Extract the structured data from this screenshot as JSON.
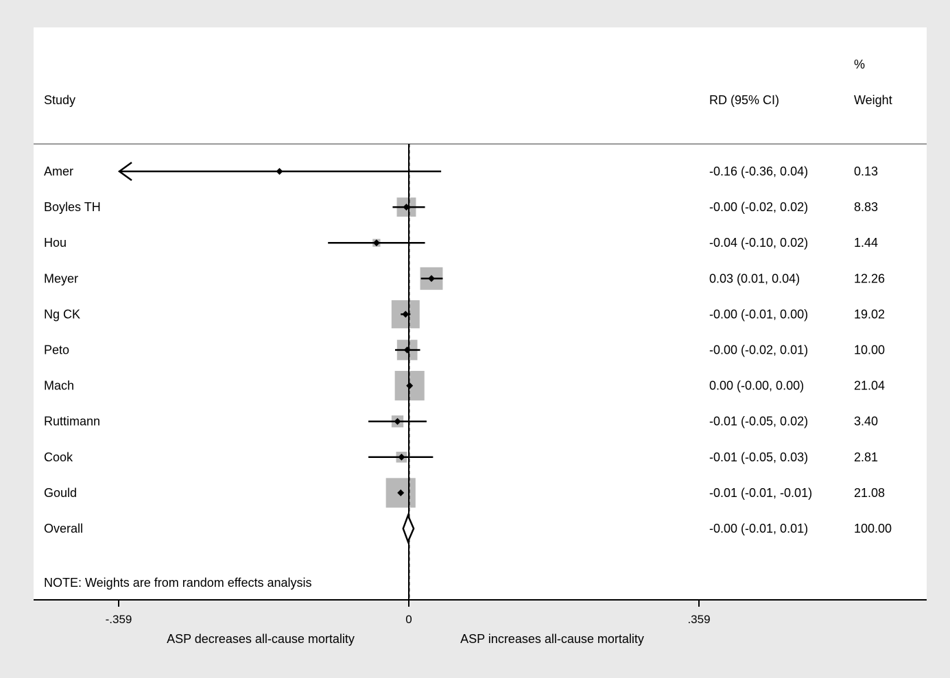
{
  "chart_data": {
    "type": "forest",
    "headers": {
      "study": "Study",
      "effect": "RD (95% CI)",
      "weight_top": "%",
      "weight": "Weight"
    },
    "rows": [
      {
        "study": "Amer",
        "rd": -0.16,
        "lo": -0.36,
        "hi": 0.04,
        "ci_text": "-0.16 (-0.36, 0.04)",
        "weight": 0.13,
        "weight_text": "0.13",
        "lo_arrow": true
      },
      {
        "study": "Boyles TH",
        "rd": -0.003,
        "lo": -0.02,
        "hi": 0.02,
        "ci_text": "-0.00 (-0.02, 0.02)",
        "weight": 8.83,
        "weight_text": "8.83"
      },
      {
        "study": "Hou",
        "rd": -0.04,
        "lo": -0.1,
        "hi": 0.02,
        "ci_text": "-0.04 (-0.10, 0.02)",
        "weight": 1.44,
        "weight_text": "1.44"
      },
      {
        "study": "Meyer",
        "rd": 0.028,
        "lo": 0.015,
        "hi": 0.042,
        "ci_text": "0.03 (0.01, 0.04)",
        "weight": 12.26,
        "weight_text": "12.26"
      },
      {
        "study": "Ng CK",
        "rd": -0.004,
        "lo": -0.01,
        "hi": 0.002,
        "ci_text": "-0.00 (-0.01, 0.00)",
        "weight": 19.02,
        "weight_text": "19.02"
      },
      {
        "study": "Peto",
        "rd": -0.002,
        "lo": -0.017,
        "hi": 0.014,
        "ci_text": "-0.00 (-0.02, 0.01)",
        "weight": 10.0,
        "weight_text": "10.00"
      },
      {
        "study": "Mach",
        "rd": 0.001,
        "lo": -0.001,
        "hi": 0.002,
        "ci_text": "0.00 (-0.00, 0.00)",
        "weight": 21.04,
        "weight_text": "21.04"
      },
      {
        "study": "Ruttimann",
        "rd": -0.014,
        "lo": -0.05,
        "hi": 0.022,
        "ci_text": "-0.01 (-0.05, 0.02)",
        "weight": 3.4,
        "weight_text": "3.40"
      },
      {
        "study": "Cook",
        "rd": -0.009,
        "lo": -0.05,
        "hi": 0.03,
        "ci_text": "-0.01 (-0.05, 0.03)",
        "weight": 2.81,
        "weight_text": "2.81"
      },
      {
        "study": "Gould",
        "rd": -0.01,
        "lo": -0.012,
        "hi": -0.008,
        "ci_text": "-0.01 (-0.01, -0.01)",
        "weight": 21.08,
        "weight_text": "21.08"
      }
    ],
    "overall": {
      "study": "Overall",
      "rd": -0.001,
      "lo": -0.007,
      "hi": 0.006,
      "ci_text": "-0.00 (-0.01, 0.01)",
      "weight_text": "100.00"
    },
    "note": "NOTE: Weights are from random effects analysis",
    "x_ticks": [
      {
        "value": -0.359,
        "label": "-.359"
      },
      {
        "value": 0,
        "label": "0"
      },
      {
        "value": 0.359,
        "label": ".359"
      }
    ],
    "xlim": [
      -0.359,
      0.359
    ],
    "xlabel_left": "ASP decreases all-cause mortality",
    "xlabel_right": "ASP increases all-cause mortality",
    "colors": {
      "outer_background": "#e9e9e9",
      "plot_background": "#ffffff",
      "weight_box": "#b8b8b8",
      "lines": "#000000",
      "rule": "#999999"
    }
  }
}
